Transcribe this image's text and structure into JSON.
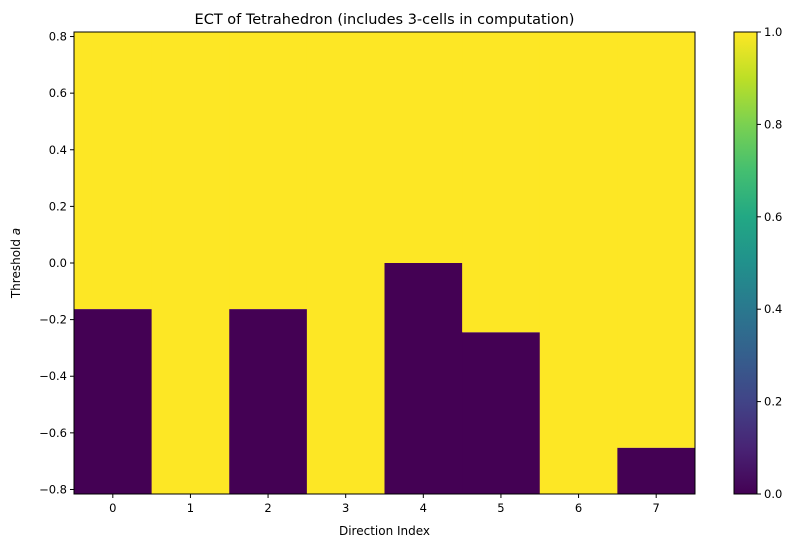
{
  "chart_data": {
    "type": "heatmap",
    "title": "ECT of Tetrahedron (includes 3-cells in computation)",
    "xlabel": "Direction Index",
    "ylabel_prefix": "Threshold ",
    "ylabel_var": "a",
    "x": [
      0,
      1,
      2,
      3,
      4,
      5,
      6,
      7
    ],
    "xticks": [
      "0",
      "1",
      "2",
      "3",
      "4",
      "5",
      "6",
      "7"
    ],
    "ylim": [
      -0.816,
      0.816
    ],
    "yticks": [
      "-0.8",
      "-0.6",
      "-0.4",
      "-0.2",
      "0.0",
      "0.2",
      "0.4",
      "0.6",
      "0.8"
    ],
    "value_range": [
      0,
      1
    ],
    "colorbar_ticks": [
      "0.0",
      "0.2",
      "0.4",
      "0.6",
      "0.8",
      "1.0"
    ],
    "colormap": "viridis",
    "low_color": "#440154",
    "high_color": "#fde725",
    "series": [
      {
        "direction": 0,
        "value_below": 0,
        "value_above": 1,
        "threshold": -0.163
      },
      {
        "direction": 1,
        "value_below": 1,
        "value_above": 1,
        "threshold": -0.816
      },
      {
        "direction": 2,
        "value_below": 0,
        "value_above": 1,
        "threshold": -0.163
      },
      {
        "direction": 3,
        "value_below": 1,
        "value_above": 1,
        "threshold": -0.816
      },
      {
        "direction": 4,
        "value_below": 0,
        "value_above": 1,
        "threshold": 0.0
      },
      {
        "direction": 5,
        "value_below": 0,
        "value_above": 1,
        "threshold": -0.245
      },
      {
        "direction": 6,
        "value_below": 1,
        "value_above": 1,
        "threshold": -0.816
      },
      {
        "direction": 7,
        "value_below": 0,
        "value_above": 1,
        "threshold": -0.653
      }
    ]
  }
}
